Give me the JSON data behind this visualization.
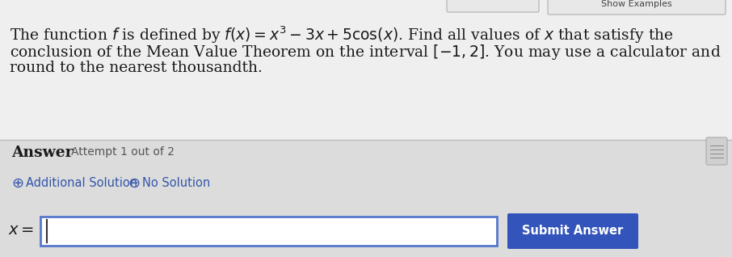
{
  "bg_top": "#f0efef",
  "bg_bottom": "#dcdcdc",
  "text_color": "#1a1a1a",
  "blue_color": "#3355aa",
  "submit_btn_color": "#3355bb",
  "submit_btn_text_color": "#ffffff",
  "input_box_bg": "#ffffff",
  "input_box_border": "#5577cc",
  "separator_color": "#bbbbbb",
  "q_line1": "The function $f$ is defined by $f(x) = x^3 - 3x + 5\\cos(x)$. Find all values of $x$ that satisfy the",
  "q_line2": "conclusion of the Mean Value Theorem on the interval $[-1, 2]$. You may use a calculator and",
  "q_line3": "round to the nearest thousandth.",
  "answer_label": "Answer",
  "attempt_text": "Attempt 1 out of 2",
  "add_solution_text": "Additional Solution",
  "no_solution_text": "No Solution",
  "submit_button_text": "Submit Answer",
  "font_size_question": 13.5,
  "font_size_answer": 13.5,
  "font_size_attempt": 10,
  "font_size_controls": 10.5,
  "font_size_submit": 10.5
}
